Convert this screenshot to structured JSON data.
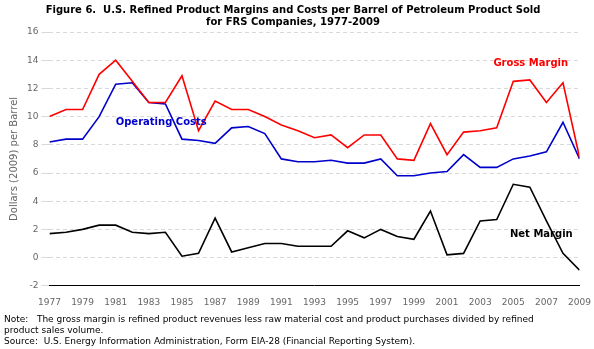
{
  "chart_data": {
    "type": "line",
    "title": [
      "Figure 6.  U.S. Refined Product Margins and Costs per Barrel of Petroleum Product Sold",
      "for FRS Companies, 1977-2009"
    ],
    "y_label": "Dollars (2009) per Barrel",
    "note": [
      "Note:   The gross margin is refined product revenues less raw material cost and product purchases divided by refined",
      "product sales volume."
    ],
    "source": "Source:  U.S. Energy Information Administration, Form EIA-28 (Financial Reporting System).",
    "x": [
      1977,
      1978,
      1979,
      1980,
      1981,
      1982,
      1983,
      1984,
      1985,
      1986,
      1987,
      1988,
      1989,
      1990,
      1991,
      1992,
      1993,
      1994,
      1995,
      1996,
      1997,
      1998,
      1999,
      2000,
      2001,
      2002,
      2003,
      2004,
      2005,
      2006,
      2007,
      2008,
      2009
    ],
    "series": [
      {
        "name": "Gross Margin",
        "color": "#ff0000",
        "values": [
          10.0,
          10.5,
          10.5,
          13.0,
          14.0,
          12.5,
          11.0,
          11.0,
          12.9,
          9.0,
          11.1,
          10.5,
          10.5,
          10.0,
          9.4,
          9.0,
          8.5,
          8.7,
          7.8,
          8.7,
          8.7,
          7.0,
          6.9,
          9.5,
          7.3,
          8.9,
          9.0,
          9.2,
          12.5,
          12.6,
          11.0,
          12.4,
          7.1
        ]
      },
      {
        "name": "Operating Costs",
        "color": "#0000cc",
        "values": [
          8.2,
          8.4,
          8.4,
          10.0,
          12.3,
          12.4,
          11.0,
          10.9,
          8.4,
          8.3,
          8.1,
          9.2,
          9.3,
          8.8,
          7.0,
          6.8,
          6.8,
          6.9,
          6.7,
          6.7,
          7.0,
          5.8,
          5.8,
          6.0,
          6.1,
          7.3,
          6.4,
          6.4,
          7.0,
          7.2,
          7.5,
          9.6,
          7.0
        ]
      },
      {
        "name": "Net Margin",
        "color": "#000000",
        "values": [
          1.7,
          1.8,
          2.0,
          2.3,
          2.3,
          1.8,
          1.7,
          1.8,
          0.1,
          0.3,
          2.8,
          0.4,
          0.7,
          1.0,
          1.0,
          0.8,
          0.8,
          0.8,
          1.9,
          1.4,
          2.0,
          1.5,
          1.3,
          3.3,
          0.2,
          0.3,
          2.6,
          2.7,
          5.2,
          5.0,
          2.6,
          0.3,
          -0.9
        ]
      }
    ],
    "annotations": [
      {
        "text": "Gross Margin",
        "x": 2003.8,
        "y": 13.4,
        "color": "#ff0000"
      },
      {
        "text": "Operating Costs",
        "x": 1981.0,
        "y": 9.2,
        "color": "#0000cc"
      },
      {
        "text": "Net Margin",
        "x": 2004.8,
        "y": 1.3,
        "color": "#000000"
      }
    ],
    "xlim": [
      1977,
      2009
    ],
    "xticks": [
      1977,
      1979,
      1981,
      1983,
      1985,
      1987,
      1989,
      1991,
      1993,
      1995,
      1997,
      1999,
      2001,
      2003,
      2005,
      2007,
      2009
    ],
    "ylim": [
      -2,
      16
    ],
    "yticks": [
      -2,
      0,
      2,
      4,
      6,
      8,
      10,
      12,
      14,
      16
    ],
    "grid": true,
    "legend": "none"
  }
}
